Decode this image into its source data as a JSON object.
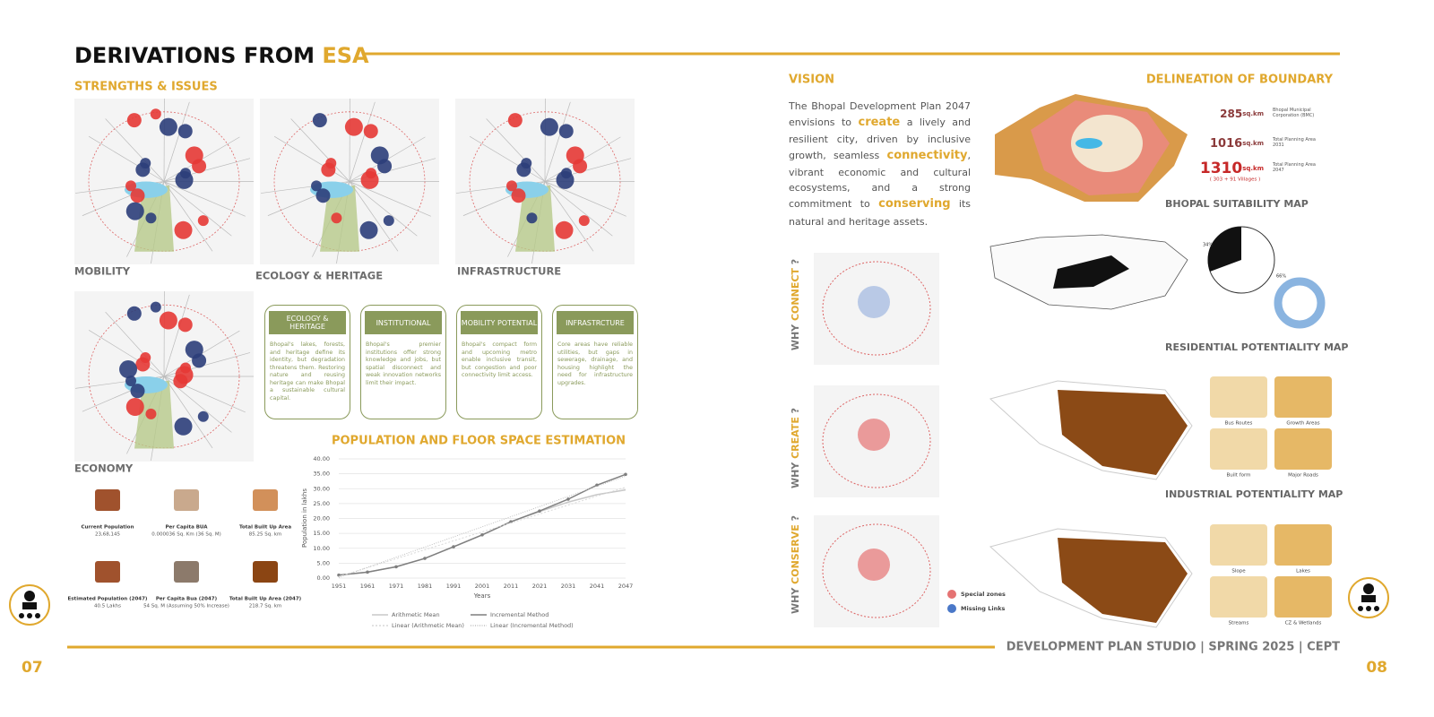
{
  "header": {
    "title": "DERIVATIONS FROM ",
    "title_highlight": "ESA"
  },
  "left": {
    "strengths_title": "STRENGTHS & ISSUES",
    "map_labels": [
      "MOBILITY",
      "ECOLOGY & HERITAGE",
      "INFRASTRUCTURE",
      "ECONOMY"
    ],
    "cards": [
      {
        "title": "ECOLOGY & HERITAGE",
        "text": "Bhopal's lakes, forests, and heritage define its identity, but degradation threatens them. Restoring nature and reusing heritage can make Bhopal a sustainable cultural capital."
      },
      {
        "title": "INSTITUTIONAL",
        "text": "Bhopal's premier institutions offer strong knowledge and jobs, but spatial disconnect and weak innovation networks limit their impact."
      },
      {
        "title": "MOBILITY POTENTIAL",
        "text": "Bhopal's compact form and upcoming metro enable inclusive transit, but congestion and poor connectivity limit access."
      },
      {
        "title": "INFRASTRCTURE",
        "text": "Core areas have reliable utilities, but gaps in sewerage, drainage, and housing highlight the need for infrastructure upgrades."
      }
    ],
    "stats": [
      {
        "label": "Current Population",
        "value": "23,68,145"
      },
      {
        "label": "Per Capita BUA",
        "value": "0.000036 Sq. Km (36 Sq. M)"
      },
      {
        "label": "Total Built Up Area",
        "value": "85.25 Sq. km"
      },
      {
        "label": "Estimated Population (2047)",
        "value": "40.5 Lakhs"
      },
      {
        "label": "Per Capita Bua (2047)",
        "value": "54 Sq. M (Assuming 50% Increase)"
      },
      {
        "label": "Total Built Up Area (2047)",
        "value": "218.7 Sq. km"
      }
    ]
  },
  "chart_data": {
    "type": "line",
    "title": "POPULATION AND FLOOR SPACE ESTIMATION",
    "y_label": "Population in lakhs",
    "x_label": "Years",
    "categories": [
      "1951",
      "1961",
      "1971",
      "1981",
      "1991",
      "2001",
      "2011",
      "2021",
      "2031",
      "2041",
      "2047"
    ],
    "ylim": [
      0,
      40
    ],
    "yticks": [
      {
        "value": 0,
        "label": "0.00"
      },
      {
        "value": 5,
        "label": "5.00"
      },
      {
        "value": 10,
        "label": "10.00"
      },
      {
        "value": 15,
        "label": "15.00"
      },
      {
        "value": 20,
        "label": "20.00"
      },
      {
        "value": 25,
        "label": "25.00"
      },
      {
        "value": 30,
        "label": "30.00"
      },
      {
        "value": 35,
        "label": "35.00"
      },
      {
        "value": 40,
        "label": "40.00"
      }
    ],
    "grid": true,
    "series": [
      {
        "name": "Arithmetic Mean",
        "color": "#c8c8c8",
        "values": [
          1,
          2,
          3.8,
          6.6,
          10.5,
          14.5,
          18.9,
          22.3,
          25.5,
          28,
          29.6
        ]
      },
      {
        "name": "Incremental Method",
        "color": "#7f7f7f",
        "values": [
          1,
          2,
          3.8,
          6.6,
          10.5,
          14.5,
          18.9,
          22.5,
          26.5,
          31.2,
          34.8
        ]
      },
      {
        "name": "Linear (Arithmetic Mean)",
        "color": "#d9d9d9",
        "values": [
          0.5,
          3.5,
          6.5,
          9.5,
          12.5,
          15.5,
          18.5,
          21.5,
          24.5,
          27.5,
          30.5
        ]
      },
      {
        "name": "Linear (Incremental Method)",
        "color": "#bfbfbf",
        "values": [
          0.2,
          3.6,
          7,
          10.4,
          13.8,
          17.2,
          20.6,
          24,
          27.4,
          30.8,
          34.2
        ]
      }
    ]
  },
  "right": {
    "vision_title": "VISION",
    "vision_text": [
      {
        "t": "The Bhopal Development Plan 2047 envisions to "
      },
      {
        "t": "create",
        "em": true
      },
      {
        "t": " a lively and resilient city, driven by inclusive growth, seamless "
      },
      {
        "t": "connectivity",
        "em": true
      },
      {
        "t": ", vibrant economic and cultural ecosystems, and a strong commitment to "
      },
      {
        "t": "conserving",
        "em": true
      },
      {
        "t": " its natural and heritage assets."
      }
    ],
    "why": [
      {
        "pre": "WHY ",
        "word": "CONNECT",
        "post": " ?"
      },
      {
        "pre": "WHY ",
        "word": "CREATE",
        "post": " ?"
      },
      {
        "pre": "WHY ",
        "word": "CONSERVE",
        "post": " ?"
      }
    ],
    "conserve_legend": [
      "Special zones",
      "Missing Links"
    ],
    "boundary_title": "DELINEATION OF BOUNDARY",
    "boundary_stats": [
      {
        "value": "285",
        "unit": "sq.km",
        "label": "Bhopal Municipal Corporation (BMC)"
      },
      {
        "value": "1016",
        "unit": "sq.km",
        "label": "Total Planning Area 2031"
      },
      {
        "value": "1310",
        "unit": "sq.km",
        "label": "Total Planning Area 2047",
        "note": "( 303 + 91 Villages )"
      }
    ],
    "map_titles": [
      "BHOPAL SUITABILITY MAP",
      "RESIDENTIAL POTENTIALITY MAP",
      "INDUSTRIAL POTENTIALITY MAP"
    ],
    "suitability_labels": [
      "34%",
      "66%"
    ],
    "res_thumbs": [
      "Bus Routes",
      "Growth Areas",
      "Built form",
      "Major Roads"
    ],
    "ind_thumbs": [
      "Slope",
      "Lakes",
      "Streams",
      "CZ & Wetlands"
    ]
  },
  "footer": {
    "studio": "DEVELOPMENT PLAN STUDIO | SPRING 2025 | CEPT",
    "page_left": "07",
    "page_right": "08"
  }
}
